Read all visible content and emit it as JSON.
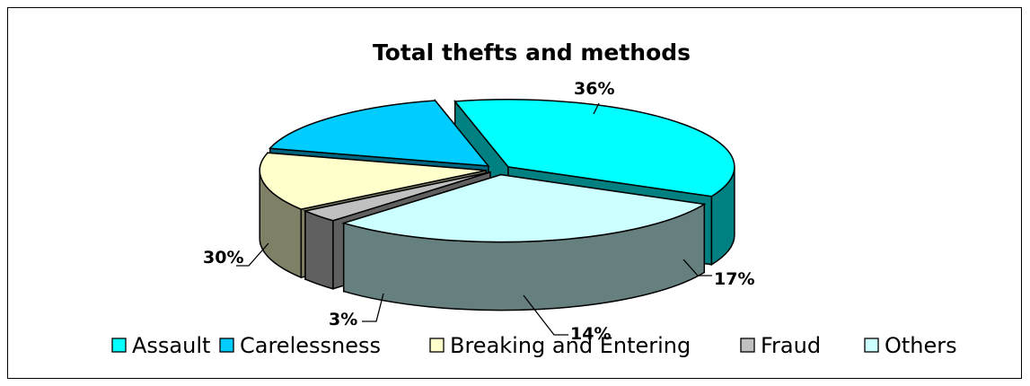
{
  "chart_data": {
    "type": "pie",
    "title": "Total thefts and methods",
    "categories": [
      "Assault",
      "Carelessness",
      "Breaking and Entering",
      "Fraud",
      "Others"
    ],
    "values": [
      36,
      17,
      14,
      3,
      30
    ],
    "labels": [
      "36%",
      "17%",
      "14%",
      "3%",
      "30%"
    ],
    "colors": {
      "top": [
        "#00FFFF",
        "#00CCFF",
        "#FFFFCC",
        "#C0C0C0",
        "#CCFFFF"
      ],
      "side": [
        "#008080",
        "#006680",
        "#808066",
        "#606060",
        "#668080"
      ]
    },
    "legend_position": "bottom",
    "style": "3d-exploded"
  }
}
